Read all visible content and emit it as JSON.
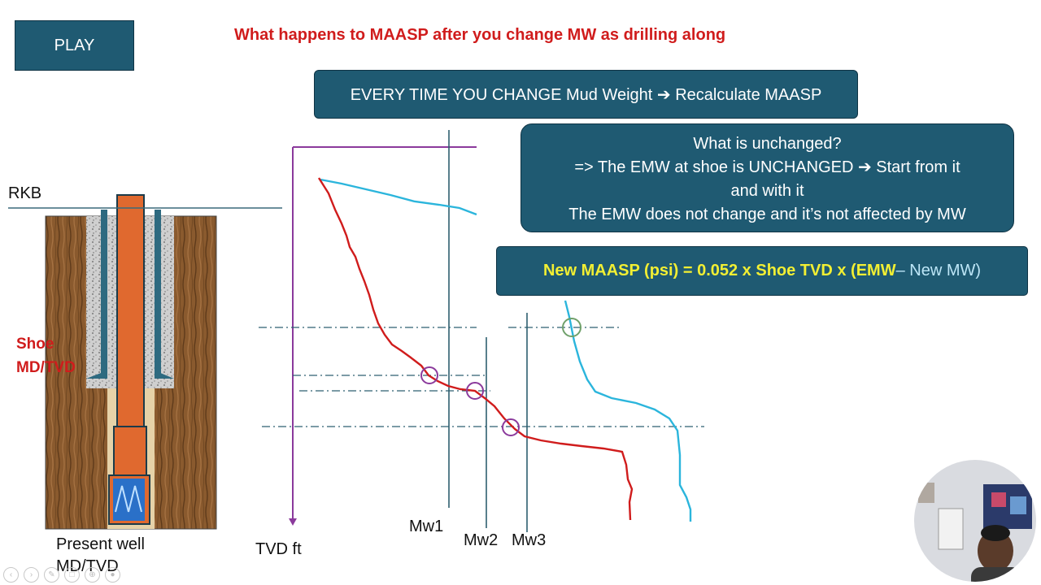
{
  "controls": {
    "play_label": "PLAY"
  },
  "slide": {
    "title": "What happens to MAASP after you change MW as drilling along",
    "banner": "EVERY TIME YOU CHANGE Mud Weight ➔ Recalculate MAASP",
    "info_lines": [
      "What is unchanged?",
      "=> The EMW at shoe is UNCHANGED ➔ Start from it",
      "and with it",
      "The EMW does not change  and it’s not affected by MW"
    ],
    "formula": {
      "part1": "New MAASP (psi) = 0.052 x Shoe TVD x (EMW",
      "part2": " – New MW)"
    }
  },
  "diagram": {
    "rkb_label": "RKB",
    "shoe_label_line1": "Shoe",
    "shoe_label_line2": "MD/TVD",
    "well_label_line1": "Present well",
    "well_label_line2": "MD/TVD",
    "tvd_label": "TVD ft",
    "mw_labels": [
      "Mw1",
      "Mw2",
      "Mw3"
    ]
  },
  "colors": {
    "box_fill": "#1f5a72",
    "title_red": "#d01c1c",
    "formula_yellow": "#f2ef33",
    "pore_curve": "#d01c1c",
    "frac_curve": "#2bb5dc",
    "axis_purple": "#8b3a9c",
    "casing_orange": "#e0692f"
  },
  "icons": {
    "slide_controls": [
      "prev-icon",
      "next-icon",
      "pen-icon",
      "copy-icon",
      "zoom-icon",
      "camera-icon"
    ]
  }
}
